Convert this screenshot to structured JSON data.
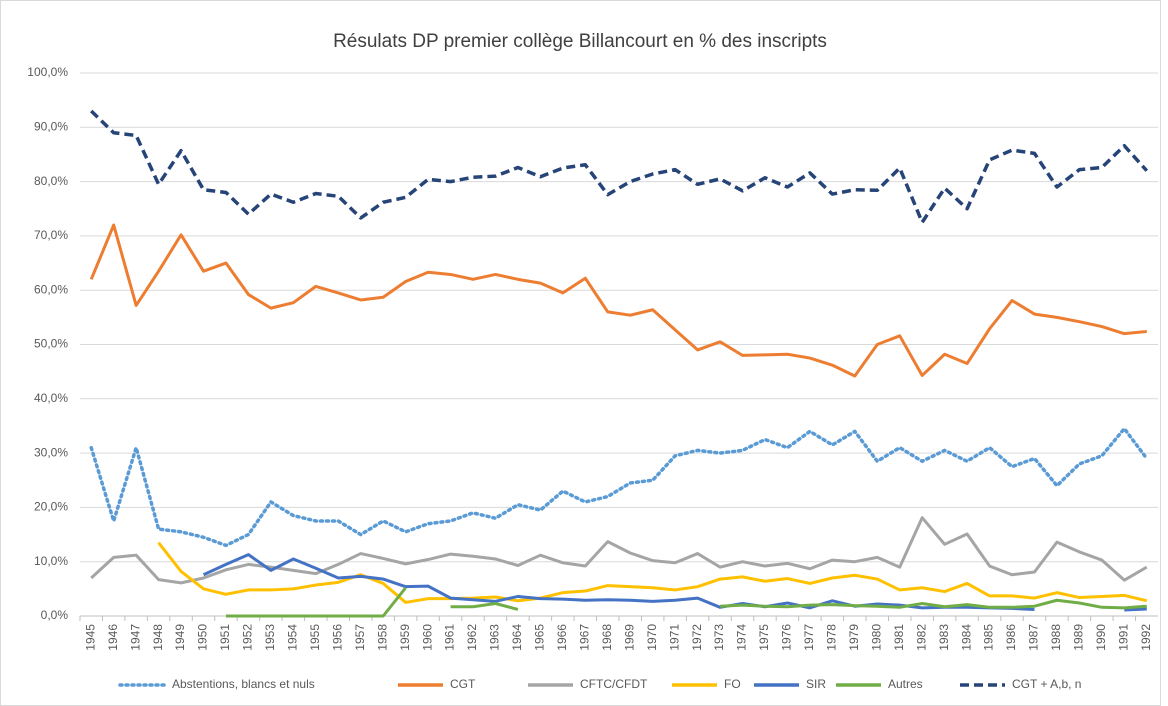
{
  "chart_data": {
    "type": "line",
    "title": "Résulats DP premier collège Billancourt en % des inscripts",
    "categories": [
      "1945",
      "1946",
      "1947",
      "1948",
      "1949",
      "1950",
      "1951",
      "1952",
      "1953",
      "1954",
      "1955",
      "1956",
      "1957",
      "1958",
      "1959",
      "1960",
      "1961",
      "1962",
      "1963",
      "1964",
      "1965",
      "1966",
      "1967",
      "1968",
      "1969",
      "1970",
      "1971",
      "1972",
      "1973",
      "1974",
      "1975",
      "1976",
      "1977",
      "1978",
      "1979",
      "1980",
      "1981",
      "1982",
      "1983",
      "1984",
      "1985",
      "1986",
      "1987",
      "1988",
      "1989",
      "1990",
      "1991",
      "1992"
    ],
    "ylim": [
      0,
      100
    ],
    "yticks": [
      {
        "value": 0,
        "label": "0,0%"
      },
      {
        "value": 10,
        "label": "10,0%"
      },
      {
        "value": 20,
        "label": "20,0%"
      },
      {
        "value": 30,
        "label": "30,0%"
      },
      {
        "value": 40,
        "label": "40,0%"
      },
      {
        "value": 50,
        "label": "50,0%"
      },
      {
        "value": 60,
        "label": "60,0%"
      },
      {
        "value": 70,
        "label": "70,0%"
      },
      {
        "value": 80,
        "label": "80,0%"
      },
      {
        "value": 90,
        "label": "90,0%"
      },
      {
        "value": 100,
        "label": "100,0%"
      }
    ],
    "grid": true,
    "legend": "bottom",
    "series": [
      {
        "name": "Abstentions, blancs et nuls",
        "color": "#5b9bd5",
        "dash": "dotted",
        "values": [
          31,
          17.5,
          31,
          16,
          15.5,
          14.5,
          13,
          15,
          21,
          18.5,
          17.5,
          17.5,
          15,
          17.5,
          15.5,
          17,
          17.5,
          19,
          18,
          20.5,
          19.5,
          23,
          21,
          22,
          24.5,
          25,
          29.5,
          30.5,
          30,
          30.5,
          32.5,
          31,
          34,
          31.5,
          34,
          28.5,
          31,
          28.5,
          30.5,
          28.5,
          31,
          27.5,
          29,
          24,
          28,
          29.5,
          34.5,
          29
        ]
      },
      {
        "name": "CGT",
        "color": "#ed7d31",
        "dash": "solid",
        "values": [
          62,
          72,
          57.2,
          63.5,
          70.2,
          63.5,
          65,
          59.2,
          56.7,
          57.7,
          60.7,
          59.5,
          58.2,
          58.7,
          61.6,
          63.3,
          62.9,
          62,
          62.9,
          62,
          61.3,
          59.5,
          62.2,
          56,
          55.4,
          56.4,
          52.7,
          49,
          50.5,
          48,
          48.1,
          48.2,
          47.5,
          46.2,
          44.2,
          50,
          51.6,
          44.3,
          48.2,
          46.5,
          52.9,
          58.1,
          55.6,
          55,
          54.2,
          53.3,
          52,
          52.4
        ]
      },
      {
        "name": "CFTC/CFDT",
        "color": "#a5a5a5",
        "dash": "solid",
        "values": [
          7,
          10.8,
          11.2,
          6.7,
          6.1,
          7,
          8.5,
          9.5,
          9,
          8.4,
          7.8,
          9.5,
          11.5,
          10.6,
          9.6,
          10.4,
          11.4,
          11,
          10.5,
          9.3,
          11.2,
          9.8,
          9.2,
          13.7,
          11.6,
          10.2,
          9.8,
          11.5,
          9,
          10,
          9.2,
          9.7,
          8.7,
          10.3,
          10,
          10.8,
          9,
          18.1,
          13.2,
          15.1,
          9.2,
          7.6,
          8.1,
          13.6,
          11.8,
          10.3,
          6.6,
          9
        ]
      },
      {
        "name": "FO",
        "color": "#ffc000",
        "dash": "solid",
        "values": [
          null,
          null,
          null,
          13.5,
          8.2,
          5,
          4,
          4.8,
          4.8,
          5,
          5.7,
          6.2,
          7.6,
          6,
          2.5,
          3.2,
          3.2,
          3.3,
          3.5,
          2.8,
          3.3,
          4.3,
          4.6,
          5.6,
          5.4,
          5.2,
          4.8,
          5.4,
          6.8,
          7.2,
          6.4,
          6.9,
          6,
          7,
          7.5,
          6.8,
          4.8,
          5.2,
          4.5,
          6,
          3.7,
          3.7,
          3.3,
          4.3,
          3.4,
          3.6,
          3.8,
          2.8
        ]
      },
      {
        "name": "SIR",
        "color": "#4472c4",
        "dash": "solid",
        "values": [
          null,
          null,
          null,
          null,
          null,
          7.6,
          9.5,
          11.3,
          8.4,
          10.5,
          8.8,
          7,
          7.3,
          6.8,
          5.4,
          5.5,
          3.3,
          3,
          2.7,
          3.6,
          3.2,
          3.1,
          2.9,
          3,
          2.9,
          2.7,
          2.9,
          3.3,
          1.6,
          2.3,
          1.7,
          2.4,
          1.5,
          2.8,
          1.8,
          2.2,
          2,
          1.5,
          1.6,
          1.6,
          1.5,
          1.4,
          1.2,
          null,
          null,
          null,
          1.1,
          1.3
        ]
      },
      {
        "name": "Autres",
        "color": "#70ad47",
        "dash": "solid",
        "values": [
          null,
          null,
          null,
          null,
          null,
          null,
          0,
          0,
          0,
          0,
          0,
          0,
          0,
          0,
          5.2,
          null,
          1.7,
          1.7,
          2.3,
          1.2,
          null,
          null,
          null,
          null,
          null,
          null,
          null,
          null,
          1.8,
          2,
          1.8,
          1.7,
          2,
          2.1,
          1.9,
          1.8,
          1.6,
          2.3,
          1.7,
          2.1,
          1.6,
          1.6,
          1.8,
          2.9,
          2.4,
          1.6,
          1.5,
          1.8
        ]
      },
      {
        "name": "CGT + A,b, n",
        "color": "#264478",
        "dash": "dashed",
        "values": [
          93,
          89,
          88.5,
          79.5,
          85.7,
          78.5,
          78,
          74,
          77.7,
          76.2,
          77.8,
          77.3,
          73.3,
          76.2,
          77.1,
          80.4,
          80,
          80.8,
          81,
          82.6,
          80.9,
          82.5,
          83.1,
          77.6,
          80,
          81.4,
          82.2,
          79.5,
          80.5,
          78.3,
          80.7,
          79,
          81.6,
          77.7,
          78.5,
          78.4,
          82.5,
          72.5,
          78.8,
          75,
          84,
          85.8,
          85.2,
          79,
          82.2,
          82.6,
          86.6,
          82
        ]
      }
    ]
  }
}
